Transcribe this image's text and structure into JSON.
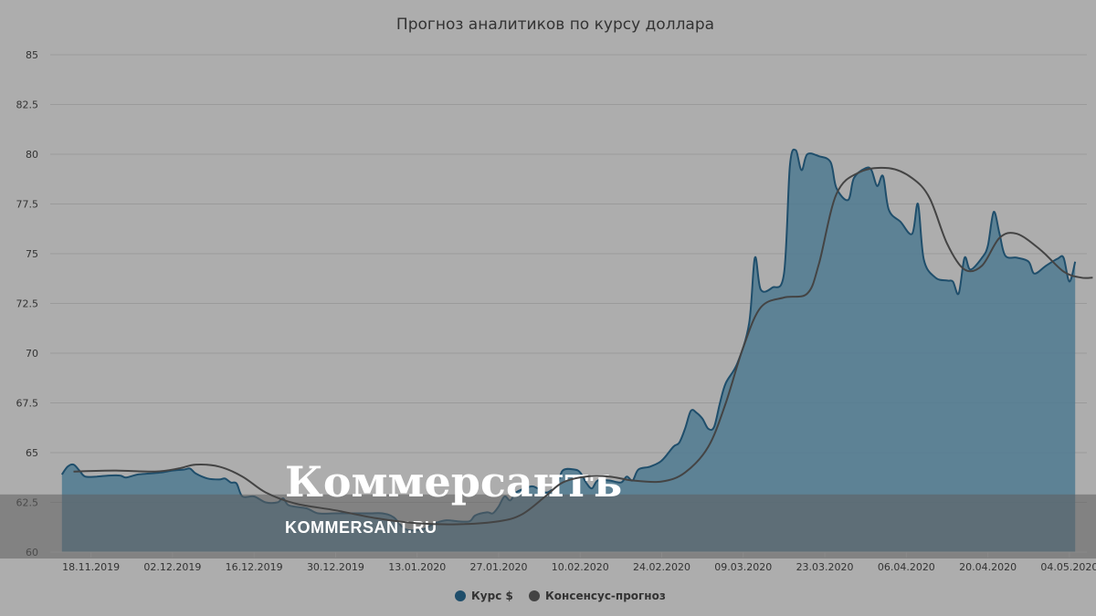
{
  "watermark": {
    "brand": "Коммерсантъ",
    "site": "KOMMERSANT.RU"
  },
  "colors": {
    "background": "#adadad",
    "grid": "#9a9a9a",
    "series_usd": "#1f4e6b",
    "series_usd_fill": "#4f7a90",
    "series_consensus": "#444444",
    "watermark_band": "#5f5f5f"
  },
  "chart_data": {
    "type": "area",
    "title": "Прогноз аналитиков по курсу доллара",
    "xlabel": "",
    "ylabel": "",
    "ylim": [
      60,
      85
    ],
    "xlim": [
      "2019-11-11",
      "2020-05-07"
    ],
    "y_ticks": [
      "60",
      "62.5",
      "65",
      "67.5",
      "70",
      "72.5",
      "75",
      "77.5",
      "80",
      "82.5",
      "85"
    ],
    "x_ticks": [
      {
        "date": "2019-11-18",
        "label": "18.11.2019"
      },
      {
        "date": "2019-12-02",
        "label": "02.12.2019"
      },
      {
        "date": "2019-12-16",
        "label": "16.12.2019"
      },
      {
        "date": "2019-12-30",
        "label": "30.12.2019"
      },
      {
        "date": "2020-01-13",
        "label": "13.01.2020"
      },
      {
        "date": "2020-01-27",
        "label": "27.01.2020"
      },
      {
        "date": "2020-02-10",
        "label": "10.02.2020"
      },
      {
        "date": "2020-02-24",
        "label": "24.02.2020"
      },
      {
        "date": "2020-03-09",
        "label": "09.03.2020"
      },
      {
        "date": "2020-03-23",
        "label": "23.03.2020"
      },
      {
        "date": "2020-04-06",
        "label": "06.04.2020"
      },
      {
        "date": "2020-04-20",
        "label": "20.04.2020"
      },
      {
        "date": "2020-05-04",
        "label": "04.05.2020"
      }
    ],
    "grid": true,
    "legend_position": "bottom-center",
    "series": [
      {
        "name": "Курс $",
        "kind": "area",
        "points": [
          [
            "2019-11-13",
            63.9
          ],
          [
            "2019-11-14",
            64.3
          ],
          [
            "2019-11-15",
            64.4
          ],
          [
            "2019-11-16",
            64.1
          ],
          [
            "2019-11-17",
            63.8
          ],
          [
            "2019-11-19",
            63.8
          ],
          [
            "2019-11-21",
            63.85
          ],
          [
            "2019-11-23",
            63.85
          ],
          [
            "2019-11-24",
            63.75
          ],
          [
            "2019-11-26",
            63.9
          ],
          [
            "2019-11-28",
            63.95
          ],
          [
            "2019-11-30",
            64.0
          ],
          [
            "2019-12-02",
            64.1
          ],
          [
            "2019-12-04",
            64.15
          ],
          [
            "2019-12-05",
            64.2
          ],
          [
            "2019-12-06",
            63.95
          ],
          [
            "2019-12-08",
            63.7
          ],
          [
            "2019-12-10",
            63.65
          ],
          [
            "2019-12-11",
            63.7
          ],
          [
            "2019-12-12",
            63.5
          ],
          [
            "2019-12-13",
            63.45
          ],
          [
            "2019-12-14",
            62.8
          ],
          [
            "2019-12-16",
            62.8
          ],
          [
            "2019-12-18",
            62.5
          ],
          [
            "2019-12-20",
            62.5
          ],
          [
            "2019-12-21",
            62.7
          ],
          [
            "2019-12-22",
            62.35
          ],
          [
            "2019-12-25",
            62.2
          ],
          [
            "2019-12-27",
            61.95
          ],
          [
            "2019-12-30",
            61.95
          ],
          [
            "2020-01-03",
            61.95
          ],
          [
            "2020-01-05",
            61.95
          ],
          [
            "2020-01-07",
            61.95
          ],
          [
            "2020-01-09",
            61.75
          ],
          [
            "2020-01-11",
            61.15
          ],
          [
            "2020-01-14",
            61.15
          ],
          [
            "2020-01-16",
            61.45
          ],
          [
            "2020-01-18",
            61.6
          ],
          [
            "2020-01-20",
            61.55
          ],
          [
            "2020-01-22",
            61.55
          ],
          [
            "2020-01-23",
            61.85
          ],
          [
            "2020-01-25",
            62.0
          ],
          [
            "2020-01-26",
            61.95
          ],
          [
            "2020-01-27",
            62.3
          ],
          [
            "2020-01-28",
            62.8
          ],
          [
            "2020-01-29",
            62.6
          ],
          [
            "2020-01-30",
            63.0
          ],
          [
            "2020-02-01",
            63.25
          ],
          [
            "2020-02-02",
            63.3
          ],
          [
            "2020-02-04",
            63.0
          ],
          [
            "2020-02-05",
            63.1
          ],
          [
            "2020-02-06",
            63.3
          ],
          [
            "2020-02-07",
            64.1
          ],
          [
            "2020-02-09",
            64.15
          ],
          [
            "2020-02-10",
            64.0
          ],
          [
            "2020-02-11",
            63.5
          ],
          [
            "2020-02-12",
            63.2
          ],
          [
            "2020-02-13",
            63.6
          ],
          [
            "2020-02-15",
            63.6
          ],
          [
            "2020-02-17",
            63.5
          ],
          [
            "2020-02-18",
            63.8
          ],
          [
            "2020-02-19",
            63.6
          ],
          [
            "2020-02-20",
            64.15
          ],
          [
            "2020-02-22",
            64.3
          ],
          [
            "2020-02-24",
            64.6
          ],
          [
            "2020-02-26",
            65.3
          ],
          [
            "2020-02-27",
            65.5
          ],
          [
            "2020-02-28",
            66.2
          ],
          [
            "2020-02-29",
            67.1
          ],
          [
            "2020-03-01",
            67.0
          ],
          [
            "2020-03-02",
            66.7
          ],
          [
            "2020-03-03",
            66.2
          ],
          [
            "2020-03-04",
            66.3
          ],
          [
            "2020-03-05",
            67.5
          ],
          [
            "2020-03-06",
            68.5
          ],
          [
            "2020-03-08",
            69.5
          ],
          [
            "2020-03-10",
            71.5
          ],
          [
            "2020-03-11",
            74.8
          ],
          [
            "2020-03-12",
            73.2
          ],
          [
            "2020-03-14",
            73.3
          ],
          [
            "2020-03-16",
            74.0
          ],
          [
            "2020-03-17",
            79.4
          ],
          [
            "2020-03-18",
            80.2
          ],
          [
            "2020-03-19",
            79.2
          ],
          [
            "2020-03-20",
            80.0
          ],
          [
            "2020-03-22",
            79.9
          ],
          [
            "2020-03-24",
            79.6
          ],
          [
            "2020-03-25",
            78.3
          ],
          [
            "2020-03-27",
            77.7
          ],
          [
            "2020-03-28",
            78.8
          ],
          [
            "2020-03-30",
            79.3
          ],
          [
            "2020-03-31",
            79.2
          ],
          [
            "2020-04-01",
            78.4
          ],
          [
            "2020-04-02",
            78.9
          ],
          [
            "2020-04-03",
            77.2
          ],
          [
            "2020-04-05",
            76.6
          ],
          [
            "2020-04-07",
            76.0
          ],
          [
            "2020-04-08",
            77.5
          ],
          [
            "2020-04-09",
            74.7
          ],
          [
            "2020-04-11",
            73.8
          ],
          [
            "2020-04-13",
            73.65
          ],
          [
            "2020-04-14",
            73.6
          ],
          [
            "2020-04-15",
            73.0
          ],
          [
            "2020-04-16",
            74.8
          ],
          [
            "2020-04-17",
            74.2
          ],
          [
            "2020-04-19",
            74.8
          ],
          [
            "2020-04-20",
            75.4
          ],
          [
            "2020-04-21",
            77.1
          ],
          [
            "2020-04-22",
            76.0
          ],
          [
            "2020-04-23",
            74.9
          ],
          [
            "2020-04-25",
            74.8
          ],
          [
            "2020-04-27",
            74.6
          ],
          [
            "2020-04-28",
            74.0
          ],
          [
            "2020-04-30",
            74.4
          ],
          [
            "2020-05-02",
            74.75
          ],
          [
            "2020-05-03",
            74.8
          ],
          [
            "2020-05-04",
            73.6
          ],
          [
            "2020-05-05",
            74.6
          ]
        ]
      },
      {
        "name": "Консенсус-прогноз",
        "kind": "line",
        "points": [
          [
            "2019-11-15",
            64.05
          ],
          [
            "2019-11-22",
            64.1
          ],
          [
            "2019-11-29",
            64.05
          ],
          [
            "2019-12-03",
            64.2
          ],
          [
            "2019-12-06",
            64.4
          ],
          [
            "2019-12-10",
            64.3
          ],
          [
            "2019-12-14",
            63.8
          ],
          [
            "2019-12-18",
            63.0
          ],
          [
            "2019-12-23",
            62.45
          ],
          [
            "2019-12-30",
            62.1
          ],
          [
            "2020-01-06",
            61.7
          ],
          [
            "2020-01-13",
            61.45
          ],
          [
            "2020-01-20",
            61.4
          ],
          [
            "2020-01-27",
            61.55
          ],
          [
            "2020-01-31",
            61.9
          ],
          [
            "2020-02-04",
            62.8
          ],
          [
            "2020-02-07",
            63.5
          ],
          [
            "2020-02-11",
            63.8
          ],
          [
            "2020-02-15",
            63.8
          ],
          [
            "2020-02-19",
            63.6
          ],
          [
            "2020-02-24",
            63.55
          ],
          [
            "2020-02-28",
            64.0
          ],
          [
            "2020-03-03",
            65.3
          ],
          [
            "2020-03-06",
            67.5
          ],
          [
            "2020-03-09",
            70.3
          ],
          [
            "2020-03-12",
            72.3
          ],
          [
            "2020-03-16",
            72.8
          ],
          [
            "2020-03-20",
            73.0
          ],
          [
            "2020-03-22",
            74.5
          ],
          [
            "2020-03-25",
            78.0
          ],
          [
            "2020-03-29",
            79.1
          ],
          [
            "2020-04-03",
            79.3
          ],
          [
            "2020-04-07",
            78.8
          ],
          [
            "2020-04-10",
            77.8
          ],
          [
            "2020-04-13",
            75.5
          ],
          [
            "2020-04-16",
            74.2
          ],
          [
            "2020-04-19",
            74.4
          ],
          [
            "2020-04-22",
            75.8
          ],
          [
            "2020-04-25",
            76.0
          ],
          [
            "2020-04-29",
            75.2
          ],
          [
            "2020-05-03",
            74.1
          ],
          [
            "2020-05-06",
            73.8
          ],
          [
            "2020-05-08",
            73.8
          ]
        ]
      }
    ]
  }
}
